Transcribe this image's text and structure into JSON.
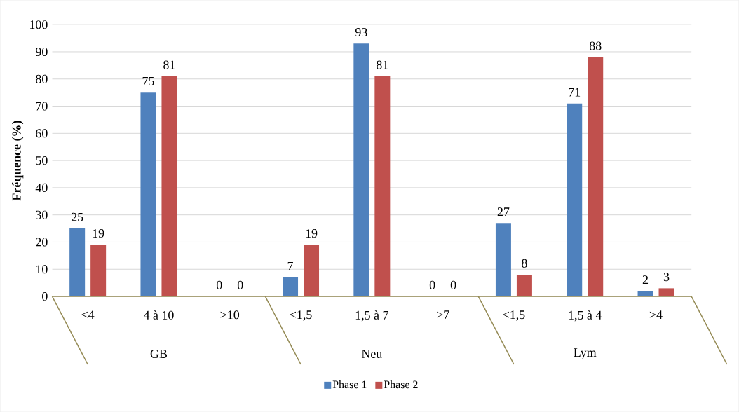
{
  "chart_data": {
    "type": "bar",
    "ylabel": "Fréquence (%)",
    "categories": [
      "<4",
      "4 à 10",
      ">10",
      "<1,5",
      "1,5 à 7",
      ">7",
      "<1,5",
      "1,5 à 4",
      ">4"
    ],
    "annotations": [
      "GB",
      "Neu",
      "Lym"
    ],
    "series": [
      {
        "name": "Phase 1",
        "color": "#4f81bd",
        "values": [
          25,
          75,
          0,
          7,
          93,
          0,
          27,
          71,
          2
        ]
      },
      {
        "name": "Phase 2",
        "color": "#c0504d",
        "values": [
          19,
          81,
          0,
          19,
          81,
          0,
          8,
          88,
          3
        ]
      }
    ],
    "ylim": [
      0,
      100
    ],
    "yticks": [
      0,
      10,
      20,
      30,
      40,
      50,
      60,
      70,
      80,
      90,
      100
    ],
    "grid": "y",
    "legend": "bottom",
    "data_labels": true
  }
}
